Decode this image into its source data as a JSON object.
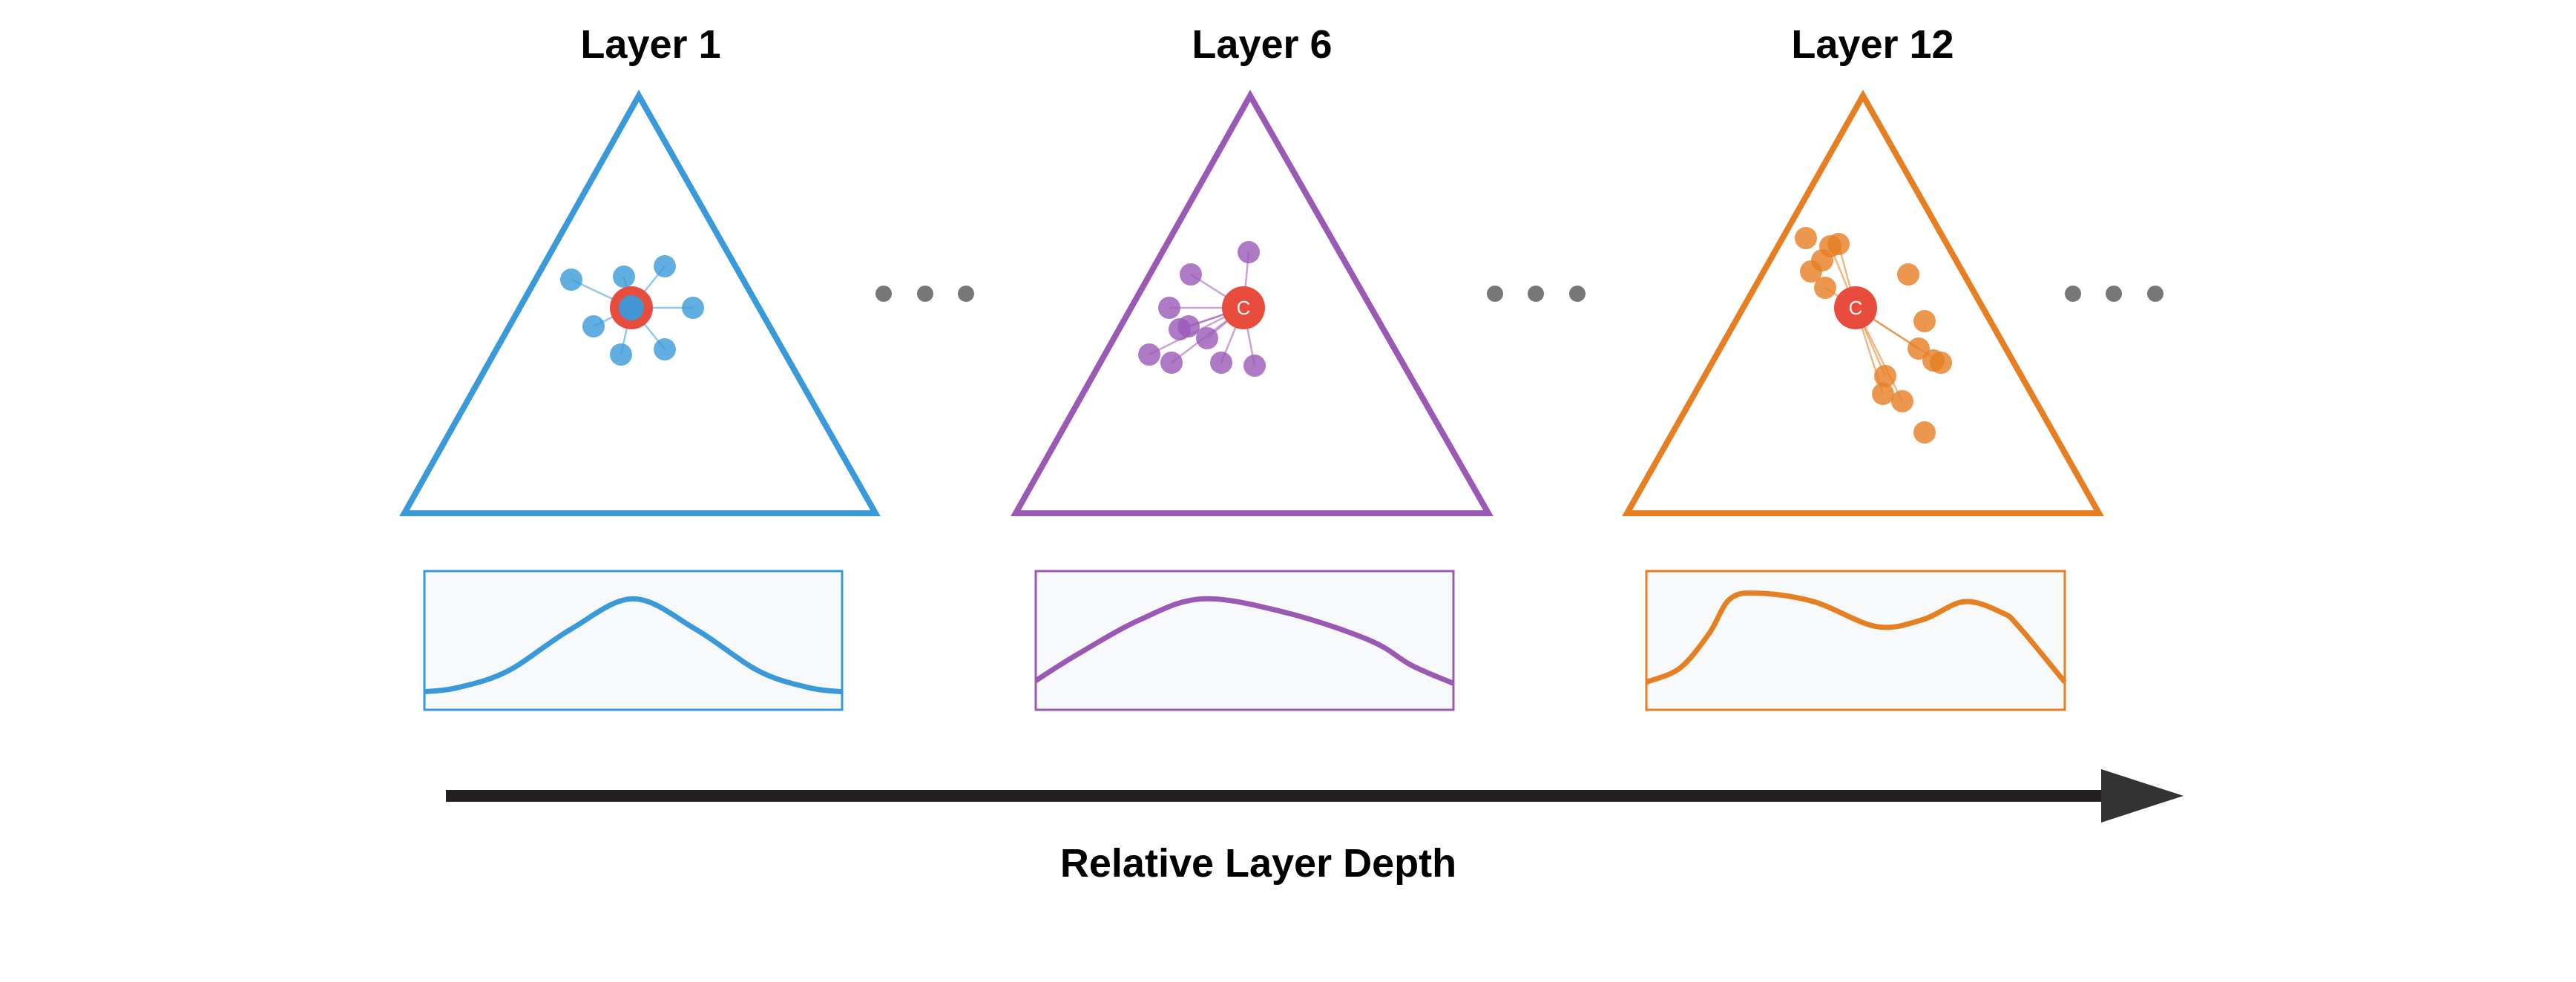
{
  "panels": [
    {
      "title": "Layer 1",
      "color": "#3a9ad9",
      "center_label": ""
    },
    {
      "title": "Layer 6",
      "color": "#9b59b6",
      "center_label": "C"
    },
    {
      "title": "Layer 12",
      "color": "#e67e22",
      "center_label": "C"
    }
  ],
  "center_color": "#e74c3c",
  "ellipsis_color": "#777777",
  "box_fill": "#f7f9fa",
  "axis": {
    "label": "Relative Layer Depth",
    "color": "#231f20"
  }
}
